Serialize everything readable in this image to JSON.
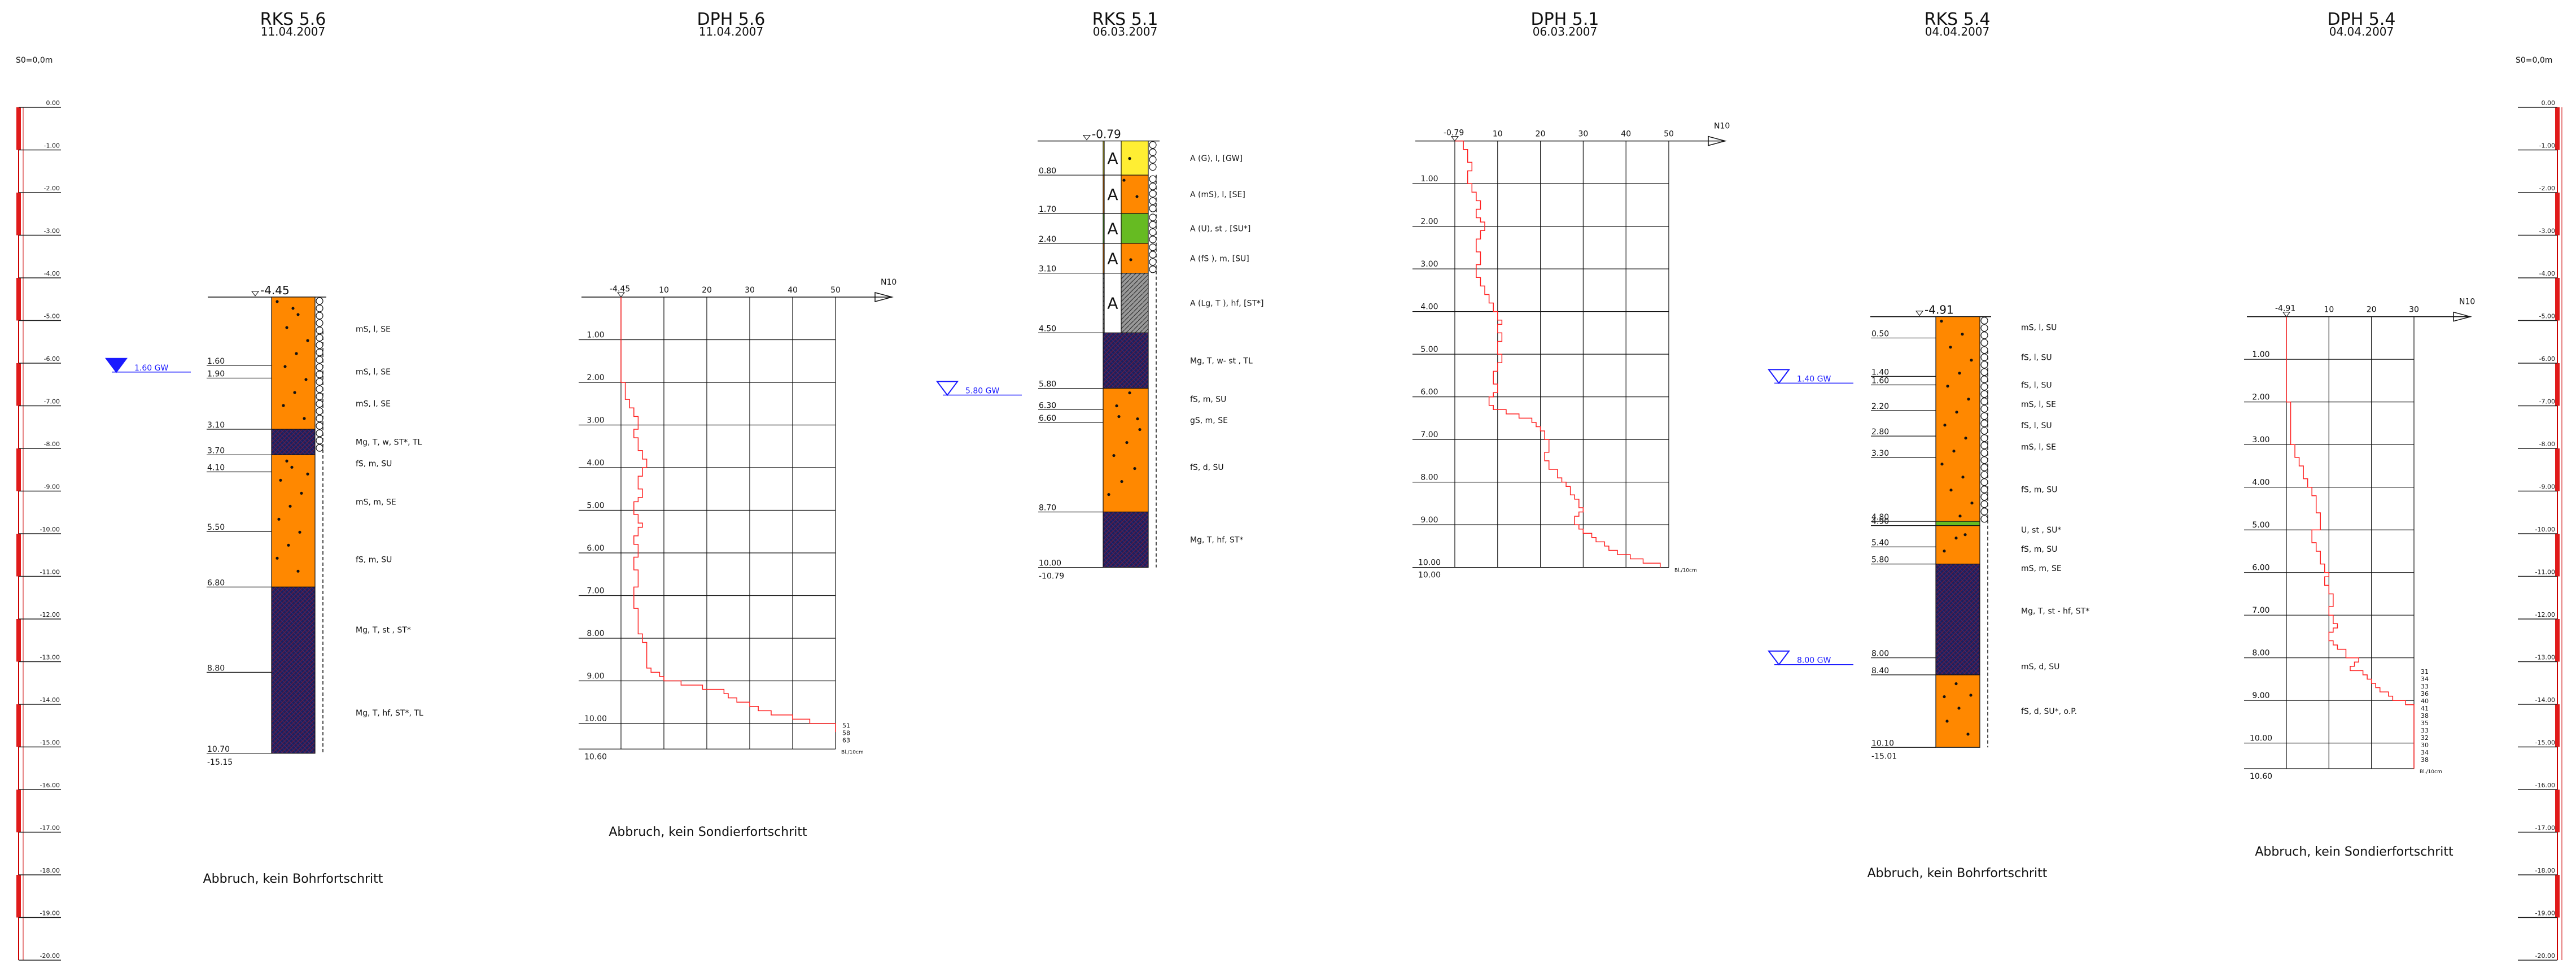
{
  "scale": {
    "label": "S0=0,0m",
    "ticks": [
      "0.00",
      "-1.00",
      "-2.00",
      "-3.00",
      "-4.00",
      "-5.00",
      "-6.00",
      "-7.00",
      "-8.00",
      "-9.00",
      "-10.00",
      "-11.00",
      "-12.00",
      "-13.00",
      "-14.00",
      "-15.00",
      "-16.00",
      "-17.00",
      "-18.00",
      "-19.00",
      "-20.00"
    ]
  },
  "profiles": [
    {
      "kind": "boring",
      "title": "RKS 5.6",
      "date": "11.04.2007",
      "top_label": "-4.45",
      "top_rel": -4.45,
      "bottom_label": "-15.15",
      "gw": {
        "label": "1.60 GW",
        "depth": 1.6,
        "filled": true
      },
      "depth_labels": [
        "1.60",
        "1.90",
        "3.10",
        "3.70",
        "4.10",
        "5.50",
        "6.80",
        "8.80",
        "10.70"
      ],
      "layers": [
        {
          "from": 0,
          "to": 3.1,
          "fill": "#ff8800",
          "circles": true
        },
        {
          "from": 3.1,
          "to": 3.7,
          "fill": "#1d1f5c",
          "circles": true
        },
        {
          "from": 3.7,
          "to": 6.8,
          "fill": "#ff8800",
          "circles": false
        },
        {
          "from": 6.8,
          "to": 10.7,
          "fill": "#1d1f5c",
          "circles": false
        }
      ],
      "descriptions": [
        {
          "text": "mS, l, SE",
          "depth": 0.75
        },
        {
          "text": "mS, l, SE",
          "depth": 1.75
        },
        {
          "text": "mS, l, SE",
          "depth": 2.5
        },
        {
          "text": "Mg, T, w, ST*, TL",
          "depth": 3.4
        },
        {
          "text": "fS, m, SU",
          "depth": 3.9
        },
        {
          "text": "mS, m, SE",
          "depth": 4.8
        },
        {
          "text": "fS, m, SU",
          "depth": 6.15
        },
        {
          "text": "Mg, T, st , ST*",
          "depth": 7.8
        },
        {
          "text": "Mg, T, hf, ST*, TL",
          "depth": 9.75
        }
      ],
      "footer": "Abbruch, kein Bohrfortschritt"
    },
    {
      "kind": "probe",
      "title": "DPH 5.6",
      "date": "11.04.2007",
      "top_label": "-4.45",
      "top_rel": -4.45,
      "end_label": "10.60",
      "end_depth": 10.6,
      "axis_title": "N10",
      "axis_ticks": [
        "10",
        "20",
        "30",
        "40",
        "50"
      ],
      "axis_max": 50,
      "depth_ticks": [
        "1.00",
        "2.00",
        "3.00",
        "4.00",
        "5.00",
        "6.00",
        "7.00",
        "8.00",
        "9.00",
        "10.00"
      ],
      "overflow_marks": [
        "51",
        "58",
        "63"
      ],
      "unit": "Bl./10cm",
      "blows": [
        0,
        0,
        0,
        0,
        0,
        0,
        0,
        0,
        0,
        0,
        0,
        0,
        0,
        0,
        0,
        0,
        0,
        0,
        0,
        0,
        1,
        1,
        1,
        1,
        2,
        2,
        3,
        3,
        4,
        4,
        4,
        3,
        3,
        4,
        4,
        4,
        5,
        5,
        6,
        6,
        5,
        5,
        4,
        4,
        4,
        5,
        5,
        4,
        3,
        3,
        3,
        4,
        4,
        5,
        4,
        4,
        3,
        3,
        4,
        4,
        4,
        3,
        3,
        3,
        4,
        4,
        4,
        4,
        3,
        3,
        3,
        3,
        3,
        4,
        4,
        4,
        4,
        4,
        4,
        5,
        5,
        6,
        6,
        6,
        6,
        6,
        6,
        7,
        9,
        10,
        14,
        19,
        24,
        25,
        27,
        30,
        32,
        35,
        40,
        44,
        50,
        50
      ],
      "footer": "Abbruch, kein Sondierfortschritt"
    },
    {
      "kind": "boring",
      "title": "RKS 5.1",
      "date": "06.03.2007",
      "top_label": "-0.79",
      "top_rel": -0.79,
      "bottom_label": "-10.79",
      "gw": {
        "label": "5.80 GW",
        "depth": 5.8,
        "filled": false
      },
      "depth_labels": [
        "0.80",
        "1.70",
        "2.40",
        "3.10",
        "4.50",
        "5.80",
        "6.30",
        "6.60",
        "8.70",
        "10.00"
      ],
      "layers": [
        {
          "from": 0,
          "to": 0.8,
          "fill": "#ffee33",
          "circles": true,
          "fill_a": true
        },
        {
          "from": 0.8,
          "to": 1.7,
          "fill": "#ff8800",
          "circles": true,
          "fill_a": true
        },
        {
          "from": 1.7,
          "to": 2.4,
          "fill": "#66bb22",
          "circles": true,
          "fill_a": true
        },
        {
          "from": 2.4,
          "to": 3.1,
          "fill": "#ff8800",
          "circles": true,
          "fill_a": true
        },
        {
          "from": 3.1,
          "to": 4.5,
          "fill": "#999999",
          "circles": false,
          "fill_a": true
        },
        {
          "from": 4.5,
          "to": 5.8,
          "fill": "#1d1f5c",
          "circles": false
        },
        {
          "from": 5.8,
          "to": 8.7,
          "fill": "#ff8800",
          "circles": false
        },
        {
          "from": 8.7,
          "to": 10.0,
          "fill": "#1d1f5c",
          "circles": false
        }
      ],
      "descriptions": [
        {
          "text": "A (G), l, [GW]",
          "depth": 0.4
        },
        {
          "text": "A (mS), l, [SE]",
          "depth": 1.25
        },
        {
          "text": "A (U), st , [SU*]",
          "depth": 2.05
        },
        {
          "text": "A (fS ), m, [SU]",
          "depth": 2.75
        },
        {
          "text": "A (Lg, T ), hf, [ST*]",
          "depth": 3.8
        },
        {
          "text": "Mg, T, w- st , TL",
          "depth": 5.15
        },
        {
          "text": "fS, m, SU",
          "depth": 6.05
        },
        {
          "text": "gS, m, SE",
          "depth": 6.55
        },
        {
          "text": "fS, d, SU",
          "depth": 7.65
        },
        {
          "text": "Mg, T, hf, ST*",
          "depth": 9.35
        }
      ],
      "footer": ""
    },
    {
      "kind": "probe",
      "title": "DPH 5.1",
      "date": "06.03.2007",
      "top_label": "-0.79",
      "top_rel": -0.79,
      "end_label": "10.00",
      "end_depth": 10.0,
      "axis_title": "N10",
      "axis_ticks": [
        "10",
        "20",
        "30",
        "40",
        "50"
      ],
      "axis_max": 50,
      "depth_ticks": [
        "1.00",
        "2.00",
        "3.00",
        "4.00",
        "5.00",
        "6.00",
        "7.00",
        "8.00",
        "9.00",
        "10.00"
      ],
      "overflow_marks": [],
      "unit": "Bl./10cm",
      "blows": [
        2,
        2,
        3,
        3,
        3,
        4,
        4,
        3,
        3,
        3,
        4,
        4,
        5,
        5,
        6,
        6,
        5,
        5,
        6,
        7,
        7,
        6,
        6,
        5,
        5,
        5,
        6,
        6,
        6,
        5,
        5,
        5,
        6,
        6,
        7,
        7,
        8,
        8,
        9,
        9,
        10,
        10,
        11,
        10,
        10,
        11,
        11,
        10,
        10,
        10,
        11,
        11,
        10,
        10,
        9,
        9,
        9,
        10,
        10,
        9,
        8,
        8,
        9,
        12,
        15,
        18,
        19,
        20,
        21,
        21,
        22,
        22,
        22,
        21,
        21,
        22,
        22,
        24,
        24,
        25,
        26,
        27,
        27,
        28,
        29,
        29,
        30,
        29,
        28,
        28,
        29,
        30,
        32,
        33,
        35,
        36,
        38,
        41,
        44,
        48
      ],
      "footer": ""
    },
    {
      "kind": "boring",
      "title": "RKS 5.4",
      "date": "04.04.2007",
      "top_label": "-4.91",
      "top_rel": -4.91,
      "bottom_label": "-15.01",
      "gw": {
        "label": "1.40 GW",
        "depth": 1.4,
        "filled": false
      },
      "gw2": {
        "label": "8.00 GW",
        "depth": 8.0
      },
      "depth_labels": [
        "0.50",
        "1.40",
        "1.60",
        "2.20",
        "2.80",
        "3.30",
        "4.80",
        "4.90",
        "5.40",
        "5.80",
        "8.00",
        "8.40",
        "10.10"
      ],
      "layers": [
        {
          "from": 0,
          "to": 4.8,
          "fill": "#ff8800",
          "circles": true
        },
        {
          "from": 4.8,
          "to": 4.9,
          "fill": "#66bb22",
          "circles": false
        },
        {
          "from": 4.9,
          "to": 5.8,
          "fill": "#ff8800",
          "circles": false
        },
        {
          "from": 5.8,
          "to": 8.4,
          "fill": "#1d1f5c",
          "circles": false
        },
        {
          "from": 8.4,
          "to": 10.1,
          "fill": "#ff8800",
          "circles": false
        }
      ],
      "descriptions": [
        {
          "text": "mS, l, SU",
          "depth": 0.25
        },
        {
          "text": "fS, l, SU",
          "depth": 0.95
        },
        {
          "text": "fS, l, SU",
          "depth": 1.6
        },
        {
          "text": "mS, l, SE",
          "depth": 2.05
        },
        {
          "text": "fS, l, SU",
          "depth": 2.55
        },
        {
          "text": "mS, l, SE",
          "depth": 3.05
        },
        {
          "text": "fS, m, SU",
          "depth": 4.05
        },
        {
          "text": "U, st , SU*",
          "depth": 5.0
        },
        {
          "text": "fS, m, SU",
          "depth": 5.45
        },
        {
          "text": "mS, m, SE",
          "depth": 5.9
        },
        {
          "text": "Mg, T, st - hf, ST*",
          "depth": 6.9
        },
        {
          "text": "mS, d, SU",
          "depth": 8.2
        },
        {
          "text": "fS, d, SU*, o.P.",
          "depth": 9.25
        }
      ],
      "footer": "Abbruch, kein Bohrfortschritt"
    },
    {
      "kind": "probe",
      "title": "DPH 5.4",
      "date": "04.04.2007",
      "top_label": "-4.91",
      "top_rel": -4.91,
      "end_label": "10.60",
      "end_depth": 10.6,
      "axis_title": "N10",
      "axis_ticks": [
        "10",
        "20",
        "30"
      ],
      "axis_max": 30,
      "depth_ticks": [
        "1.00",
        "2.00",
        "3.00",
        "4.00",
        "5.00",
        "6.00",
        "7.00",
        "8.00",
        "9.00",
        "10.00"
      ],
      "overflow_marks": [
        "31",
        "34",
        "33",
        "36",
        "40",
        "41",
        "38",
        "35",
        "33",
        "32",
        "30",
        "34",
        "38"
      ],
      "unit": "Bl./10cm",
      "blows": [
        0,
        0,
        0,
        0,
        0,
        0,
        0,
        0,
        0,
        0,
        0,
        0,
        0,
        0,
        0,
        0,
        0,
        0,
        0,
        0,
        1,
        1,
        1,
        1,
        1,
        1,
        1,
        1,
        1,
        1,
        2,
        2,
        2,
        3,
        3,
        4,
        4,
        4,
        5,
        5,
        6,
        6,
        7,
        7,
        7,
        7,
        8,
        8,
        8,
        8,
        6,
        6,
        6,
        7,
        7,
        8,
        8,
        8,
        9,
        9,
        10,
        9,
        9,
        10,
        10,
        11,
        11,
        11,
        10,
        10,
        11,
        11,
        12,
        11,
        10,
        10,
        11,
        12,
        14,
        14,
        17,
        16,
        15,
        18,
        19,
        20,
        21,
        22,
        24,
        25,
        28,
        30,
        30,
        30,
        30,
        30,
        30,
        30,
        30,
        30,
        30,
        30,
        30,
        30,
        30,
        30
      ],
      "footer": "Abbruch, kein Sondierfortschritt"
    }
  ],
  "colors": {
    "scale_red": "#e01b1b",
    "probe_line": "#ff2222",
    "gw_blue": "#1a1aff",
    "sand": "#ff8800",
    "clay": "#1d1f5c",
    "fill_yellow": "#ffee33",
    "fill_green": "#66bb22",
    "fill_grey": "#999999"
  }
}
